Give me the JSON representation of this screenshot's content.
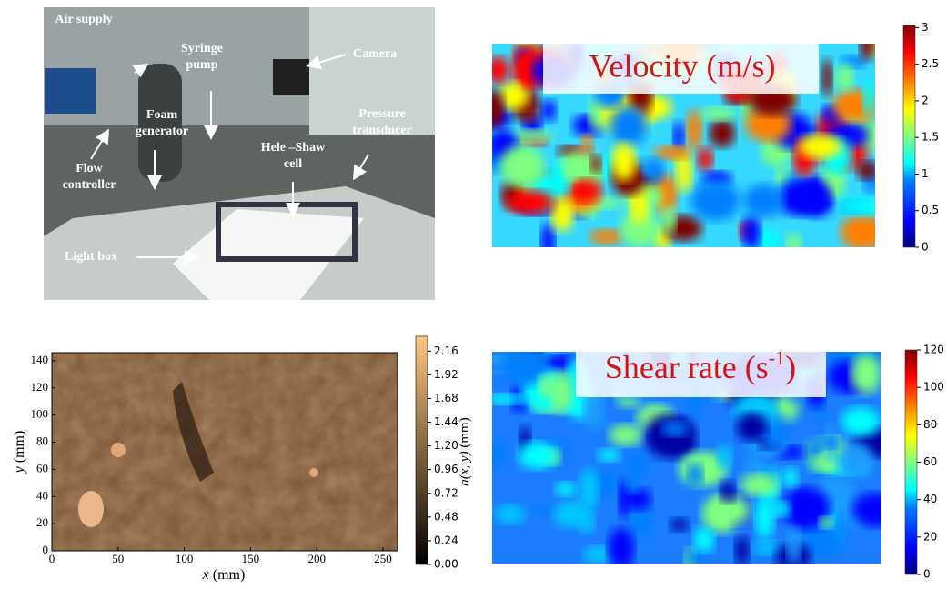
{
  "photo": {
    "labels": [
      "Air supply",
      "Syringe pump",
      "Camera",
      "Foam generator",
      "Pressure transducer",
      "Hele –Shaw cell",
      "Flow controller",
      "Light box"
    ]
  },
  "velocity_map": {
    "title": "Velocity (m/s)",
    "colorbar": {
      "clim": [
        0,
        3.03
      ],
      "ticks": [
        0,
        0.5,
        1,
        1.5,
        2,
        2.5,
        3
      ]
    }
  },
  "aperture_map": {
    "xlabel_var": "x",
    "xlabel_unit": "(mm)",
    "ylabel_var": "y",
    "ylabel_unit": "(mm)",
    "xlim": [
      0,
      261
    ],
    "xticks": [
      0,
      50,
      100,
      150,
      200,
      250
    ],
    "ylim": [
      0,
      146
    ],
    "yticks": [
      0,
      20,
      40,
      60,
      80,
      100,
      120,
      140
    ],
    "colorbar": {
      "label_var": "a(x, y)",
      "label_unit": "(mm)",
      "clim": [
        0,
        2.31
      ],
      "ticks": [
        {
          "value": 0,
          "label": "0.00"
        },
        {
          "value": 0.24,
          "label": "0.24"
        },
        {
          "value": 0.48,
          "label": "0.48"
        },
        {
          "value": 0.72,
          "label": "0.72"
        },
        {
          "value": 0.96,
          "label": "0.96"
        },
        {
          "value": 1.2,
          "label": "1.20"
        },
        {
          "value": 1.44,
          "label": "1.44"
        },
        {
          "value": 1.68,
          "label": "1.68"
        },
        {
          "value": 1.92,
          "label": "1.92"
        },
        {
          "value": 2.16,
          "label": "2.16"
        }
      ]
    }
  },
  "shear_map": {
    "title": "Shear rate (s",
    "title_superscript": "-1",
    "title_suffix": ")",
    "colorbar": {
      "clim": [
        0,
        120
      ],
      "ticks": [
        0,
        20,
        40,
        60,
        80,
        100,
        120
      ]
    }
  }
}
